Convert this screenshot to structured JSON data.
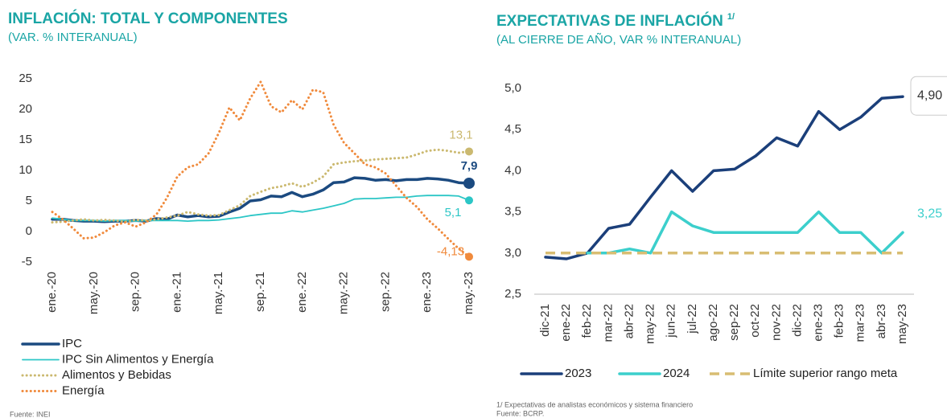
{
  "chart_data": [
    {
      "type": "line",
      "title": "INFLACIÓN: TOTAL Y COMPONENTES",
      "subtitle": "(VAR. % INTERANUAL)",
      "footnotes": [
        "Fuente: INEI"
      ],
      "legend": "bottom-left-stacked",
      "categories": [
        "ene.-20",
        null,
        null,
        null,
        "may.-20",
        null,
        null,
        null,
        "sep.-20",
        null,
        null,
        null,
        "ene.-21",
        null,
        null,
        null,
        "may.-21",
        null,
        null,
        null,
        "sep.-21",
        null,
        null,
        null,
        "ene.-22",
        null,
        null,
        null,
        "may.-22",
        null,
        null,
        null,
        "sep.-22",
        null,
        null,
        null,
        "ene.-23",
        null,
        null,
        null,
        "may.-23"
      ],
      "ylim": [
        -5,
        25
      ],
      "yticks": [
        -5,
        0,
        5,
        10,
        15,
        20,
        25
      ],
      "series": [
        {
          "name": "IPC",
          "color": "#1b4a80",
          "style": "solid",
          "values": [
            2.0,
            2.0,
            1.8,
            1.7,
            1.7,
            1.6,
            1.7,
            1.7,
            1.8,
            1.7,
            2.1,
            2.0,
            2.7,
            2.4,
            2.6,
            2.4,
            2.5,
            3.2,
            3.8,
            5.0,
            5.2,
            5.8,
            5.7,
            6.4,
            5.7,
            6.1,
            6.8,
            8.0,
            8.1,
            8.8,
            8.7,
            8.4,
            8.5,
            8.3,
            8.5,
            8.5,
            8.7,
            8.6,
            8.4,
            8.0,
            7.9
          ],
          "value_labels": [
            null,
            null,
            null,
            null,
            null,
            null,
            null,
            null,
            null,
            null,
            null,
            null,
            null,
            null,
            null,
            null,
            null,
            null,
            null,
            null,
            null,
            null,
            null,
            null,
            null,
            null,
            null,
            null,
            null,
            null,
            null,
            null,
            null,
            null,
            null,
            null,
            null,
            null,
            null,
            null,
            "7,9"
          ]
        },
        {
          "name": "IPC Sin Alimentos y Energía",
          "color": "#2cc6c6",
          "style": "thin",
          "values": [
            2.2,
            2.0,
            1.8,
            1.8,
            1.8,
            1.7,
            1.8,
            1.8,
            1.7,
            1.8,
            1.8,
            1.8,
            1.8,
            1.7,
            1.8,
            1.8,
            1.9,
            2.1,
            2.3,
            2.6,
            2.8,
            3.0,
            3.0,
            3.4,
            3.2,
            3.5,
            3.8,
            4.2,
            4.6,
            5.3,
            5.4,
            5.4,
            5.5,
            5.6,
            5.6,
            5.8,
            5.9,
            5.9,
            5.9,
            5.8,
            5.1
          ],
          "value_labels": [
            null,
            null,
            null,
            null,
            null,
            null,
            null,
            null,
            null,
            null,
            null,
            null,
            null,
            null,
            null,
            null,
            null,
            null,
            null,
            null,
            null,
            null,
            null,
            null,
            null,
            null,
            null,
            null,
            null,
            null,
            null,
            null,
            null,
            null,
            null,
            null,
            null,
            null,
            null,
            null,
            "5,1"
          ]
        },
        {
          "name": "Alimentos y Bebidas",
          "color": "#cbb970",
          "style": "dotted",
          "values": [
            1.5,
            1.6,
            1.8,
            2.0,
            1.8,
            1.9,
            1.8,
            1.6,
            1.9,
            1.8,
            2.0,
            2.3,
            2.6,
            3.2,
            2.8,
            2.6,
            2.7,
            3.5,
            4.3,
            5.8,
            6.5,
            7.1,
            7.4,
            7.9,
            7.3,
            8.0,
            9.0,
            11.0,
            11.3,
            11.5,
            11.6,
            11.8,
            11.9,
            12.0,
            12.1,
            12.6,
            13.2,
            13.4,
            13.2,
            12.9,
            13.1
          ],
          "value_labels": [
            null,
            null,
            null,
            null,
            null,
            null,
            null,
            null,
            null,
            null,
            null,
            null,
            null,
            null,
            null,
            null,
            null,
            null,
            null,
            null,
            null,
            null,
            null,
            null,
            null,
            null,
            null,
            null,
            null,
            null,
            null,
            null,
            null,
            null,
            null,
            null,
            null,
            null,
            null,
            null,
            "13,1"
          ]
        },
        {
          "name": "Energía",
          "color": "#f08a3c",
          "style": "dotted",
          "values": [
            3.2,
            2.0,
            0.5,
            -1.1,
            -1.0,
            -0.1,
            1.0,
            1.5,
            0.8,
            1.5,
            2.8,
            5.5,
            9.0,
            10.5,
            11.0,
            12.8,
            16.2,
            20.3,
            18.2,
            21.8,
            24.5,
            20.5,
            19.5,
            21.5,
            20.0,
            23.2,
            22.8,
            17.5,
            14.5,
            12.8,
            11.0,
            10.5,
            9.5,
            7.5,
            5.5,
            4.0,
            2.0,
            0.5,
            -1.2,
            -2.8,
            -4.13
          ],
          "value_labels": [
            null,
            null,
            null,
            null,
            null,
            null,
            null,
            null,
            null,
            null,
            null,
            null,
            null,
            null,
            null,
            null,
            null,
            null,
            null,
            null,
            null,
            null,
            null,
            null,
            null,
            null,
            null,
            null,
            null,
            null,
            null,
            null,
            null,
            null,
            null,
            null,
            null,
            null,
            null,
            null,
            "-4,13"
          ]
        }
      ]
    },
    {
      "type": "line",
      "title": "EXPECTATIVAS DE INFLACIÓN",
      "title_note": "1/",
      "subtitle": "(AL CIERRE DE AÑO, VAR % INTERANUAL)",
      "footnotes": [
        "1/ Expectativas de analistas económicos y sistema financiero",
        "Fuente: BCRP."
      ],
      "legend": "bottom-row",
      "categories": [
        "dic-21",
        "ene-22",
        "feb-22",
        "mar-22",
        "abr-22",
        "may-22",
        "jun-22",
        "jul-22",
        "ago-22",
        "sep-22",
        "oct-22",
        "nov-22",
        "dic-22",
        "ene-23",
        "feb-23",
        "mar-23",
        "abr-23",
        "may-23"
      ],
      "ylim": [
        2.5,
        5.0
      ],
      "yticks": [
        {
          "value": 2.5,
          "label": "2,5"
        },
        {
          "value": 3.0,
          "label": "3,0"
        },
        {
          "value": 3.5,
          "label": "3,5"
        },
        {
          "value": 4.0,
          "label": "4,0"
        },
        {
          "value": 4.5,
          "label": "4,5"
        },
        {
          "value": 5.0,
          "label": "5,0"
        }
      ],
      "series": [
        {
          "name": "2023",
          "color": "#1b3f7a",
          "style": "solid",
          "values": [
            2.95,
            2.93,
            3.0,
            3.3,
            3.35,
            3.68,
            4.0,
            3.75,
            4.0,
            4.02,
            4.18,
            4.4,
            4.3,
            4.72,
            4.5,
            4.65,
            4.88,
            4.9
          ],
          "value_labels": [
            null,
            null,
            null,
            null,
            null,
            null,
            null,
            null,
            null,
            null,
            null,
            null,
            null,
            null,
            null,
            null,
            null,
            "4,90"
          ]
        },
        {
          "name": "2024",
          "color": "#3ccfcc",
          "style": "solid",
          "values": [
            null,
            null,
            3.0,
            3.0,
            3.05,
            3.0,
            3.5,
            3.33,
            3.25,
            3.25,
            3.25,
            3.25,
            3.25,
            3.5,
            3.25,
            3.25,
            3.0,
            3.25
          ],
          "value_labels": [
            null,
            null,
            null,
            null,
            null,
            null,
            null,
            null,
            null,
            null,
            null,
            null,
            null,
            null,
            null,
            null,
            null,
            "3,25"
          ]
        },
        {
          "name": "Límite superior rango meta",
          "color": "#d8bd72",
          "style": "dashed",
          "values": [
            3.0,
            3.0,
            3.0,
            3.0,
            3.0,
            3.0,
            3.0,
            3.0,
            3.0,
            3.0,
            3.0,
            3.0,
            3.0,
            3.0,
            3.0,
            3.0,
            3.0,
            3.0
          ]
        }
      ]
    }
  ]
}
